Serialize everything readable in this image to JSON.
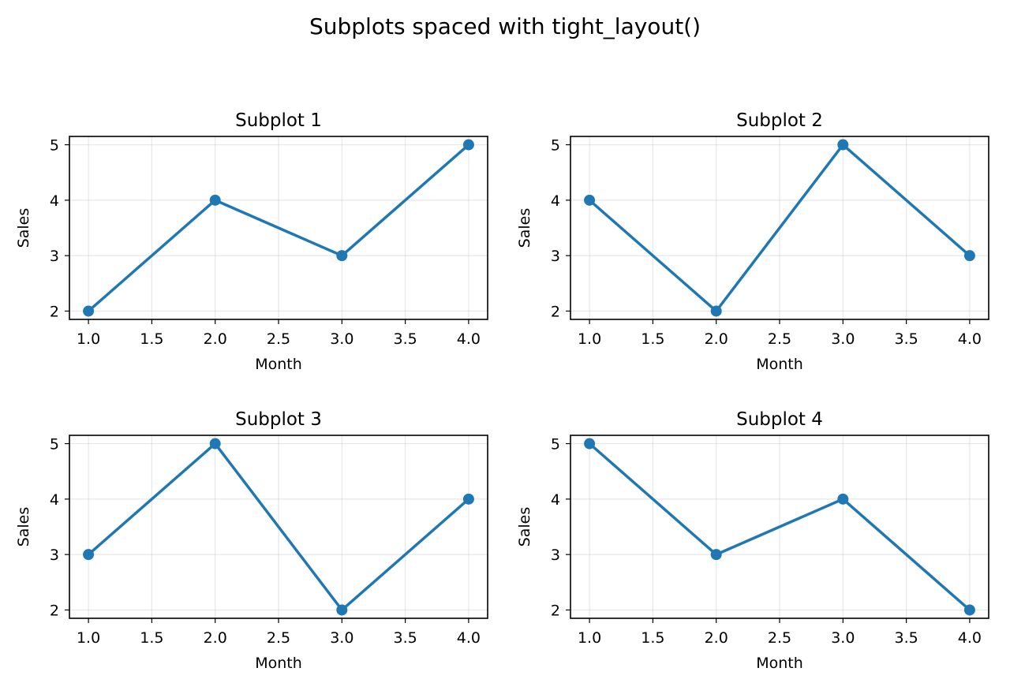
{
  "figure": {
    "suptitle": "Subplots spaced with tight_layout()"
  },
  "chart_data": [
    {
      "type": "line",
      "title": "Subplot 1",
      "xlabel": "Month",
      "ylabel": "Sales",
      "x": [
        1,
        2,
        3,
        4
      ],
      "y": [
        2,
        4,
        3,
        5
      ],
      "xlim": [
        0.85,
        4.15
      ],
      "ylim": [
        1.85,
        5.15
      ],
      "xticks": [
        "1.0",
        "1.5",
        "2.0",
        "2.5",
        "3.0",
        "3.5",
        "4.0"
      ],
      "yticks": [
        "2",
        "3",
        "4",
        "5"
      ],
      "grid": true,
      "color": "#1f77b4",
      "marker": "circle"
    },
    {
      "type": "line",
      "title": "Subplot 2",
      "xlabel": "Month",
      "ylabel": "Sales",
      "x": [
        1,
        2,
        3,
        4
      ],
      "y": [
        4,
        2,
        5,
        3
      ],
      "xlim": [
        0.85,
        4.15
      ],
      "ylim": [
        1.85,
        5.15
      ],
      "xticks": [
        "1.0",
        "1.5",
        "2.0",
        "2.5",
        "3.0",
        "3.5",
        "4.0"
      ],
      "yticks": [
        "2",
        "3",
        "4",
        "5"
      ],
      "grid": true,
      "color": "#1f77b4",
      "marker": "circle"
    },
    {
      "type": "line",
      "title": "Subplot 3",
      "xlabel": "Month",
      "ylabel": "Sales",
      "x": [
        1,
        2,
        3,
        4
      ],
      "y": [
        3,
        5,
        2,
        4
      ],
      "xlim": [
        0.85,
        4.15
      ],
      "ylim": [
        1.85,
        5.15
      ],
      "xticks": [
        "1.0",
        "1.5",
        "2.0",
        "2.5",
        "3.0",
        "3.5",
        "4.0"
      ],
      "yticks": [
        "2",
        "3",
        "4",
        "5"
      ],
      "grid": true,
      "color": "#1f77b4",
      "marker": "circle"
    },
    {
      "type": "line",
      "title": "Subplot 4",
      "xlabel": "Month",
      "ylabel": "Sales",
      "x": [
        1,
        2,
        3,
        4
      ],
      "y": [
        5,
        3,
        4,
        2
      ],
      "xlim": [
        0.85,
        4.15
      ],
      "ylim": [
        1.85,
        5.15
      ],
      "xticks": [
        "1.0",
        "1.5",
        "2.0",
        "2.5",
        "3.0",
        "3.5",
        "4.0"
      ],
      "yticks": [
        "2",
        "3",
        "4",
        "5"
      ],
      "grid": true,
      "color": "#1f77b4",
      "marker": "circle"
    }
  ]
}
